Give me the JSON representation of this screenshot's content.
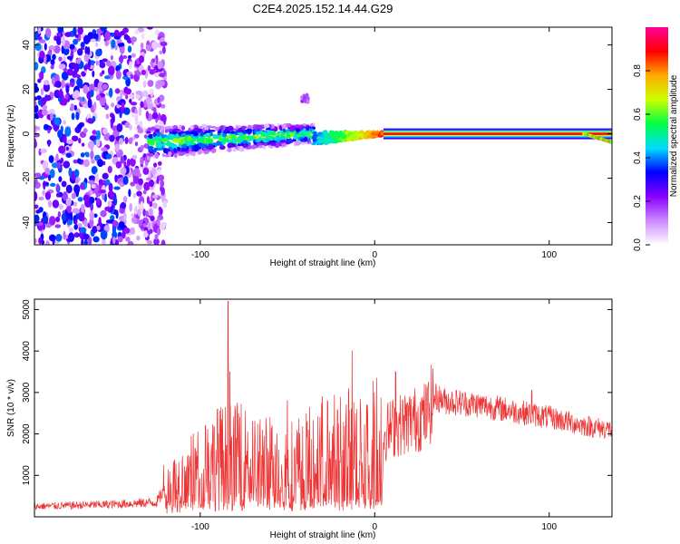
{
  "title": "C2E4.2025.152.14.44.G29",
  "chart_data": [
    {
      "type": "heatmap",
      "xlabel": "Height of straight line (km)",
      "ylabel": "Frequency (Hz)",
      "xlim": [
        -195,
        136
      ],
      "ylim": [
        -50,
        48
      ],
      "xticks": [
        -100,
        0,
        100
      ],
      "yticks": [
        -40,
        -20,
        0,
        20,
        40
      ],
      "colorbar": {
        "label": "Normalized spectral amplitude",
        "range": [
          0,
          1
        ],
        "ticks": [
          "0.0",
          "0.2",
          "0.4",
          "0.6",
          "0.8"
        ],
        "colors": [
          "#ffffff",
          "#cc88ff",
          "#8800ff",
          "#0000ff",
          "#00ddff",
          "#00ff44",
          "#ccff00",
          "#ffaa00",
          "#ff0000",
          "#ff0099"
        ]
      },
      "regions": [
        {
          "name": "noise",
          "x": [
            -195,
            -120
          ],
          "freq": [
            -50,
            48
          ],
          "amplitude": 0.15
        },
        {
          "name": "spread",
          "x": [
            -130,
            -35
          ],
          "freq": [
            -10,
            6
          ],
          "amplitude": 0.35
        },
        {
          "name": "converging",
          "x": [
            -35,
            5
          ],
          "freq": [
            -3,
            3
          ],
          "amplitude": 0.55
        },
        {
          "name": "line",
          "x": [
            5,
            136
          ],
          "freq": [
            0,
            0
          ],
          "amplitude": 0.9
        },
        {
          "name": "blob",
          "x": [
            -42,
            -38
          ],
          "freq": [
            14,
            18
          ],
          "amplitude": 0.15
        }
      ]
    },
    {
      "type": "line",
      "xlabel": "Height of straight line (km)",
      "ylabel": "SNR (10 * v/v)",
      "xlim": [
        -195,
        136
      ],
      "ylim": [
        0,
        5250
      ],
      "xticks": [
        -100,
        0,
        100
      ],
      "yticks": [
        1000,
        2000,
        3000,
        4000,
        5000
      ],
      "color": "#ee3333",
      "envelope": [
        [
          -195,
          250
        ],
        [
          -150,
          300
        ],
        [
          -125,
          350
        ],
        [
          -120,
          700
        ],
        [
          -110,
          900
        ],
        [
          -95,
          1300
        ],
        [
          -85,
          1500
        ],
        [
          -70,
          1400
        ],
        [
          -55,
          1200
        ],
        [
          -40,
          1350
        ],
        [
          -25,
          1600
        ],
        [
          -12,
          1700
        ],
        [
          -8,
          1500
        ],
        [
          0,
          1850
        ],
        [
          10,
          2150
        ],
        [
          20,
          2300
        ],
        [
          30,
          2450
        ],
        [
          34,
          2900
        ],
        [
          40,
          2800
        ],
        [
          60,
          2700
        ],
        [
          80,
          2550
        ],
        [
          100,
          2400
        ],
        [
          120,
          2200
        ],
        [
          136,
          2100
        ]
      ],
      "spikes": [
        [
          -121,
          1250
        ],
        [
          -104,
          2000
        ],
        [
          -97,
          2200
        ],
        [
          -90,
          2600
        ],
        [
          -84,
          5200
        ],
        [
          -83,
          3500
        ],
        [
          -78,
          2500
        ],
        [
          -70,
          2300
        ],
        [
          -60,
          2400
        ],
        [
          -50,
          2800
        ],
        [
          -38,
          2100
        ],
        [
          -30,
          2900
        ],
        [
          -27,
          2800
        ],
        [
          -15,
          3000
        ],
        [
          -13,
          4000
        ],
        [
          -8,
          2500
        ],
        [
          12,
          3500
        ],
        [
          22,
          2650
        ],
        [
          90,
          3050
        ]
      ]
    }
  ]
}
